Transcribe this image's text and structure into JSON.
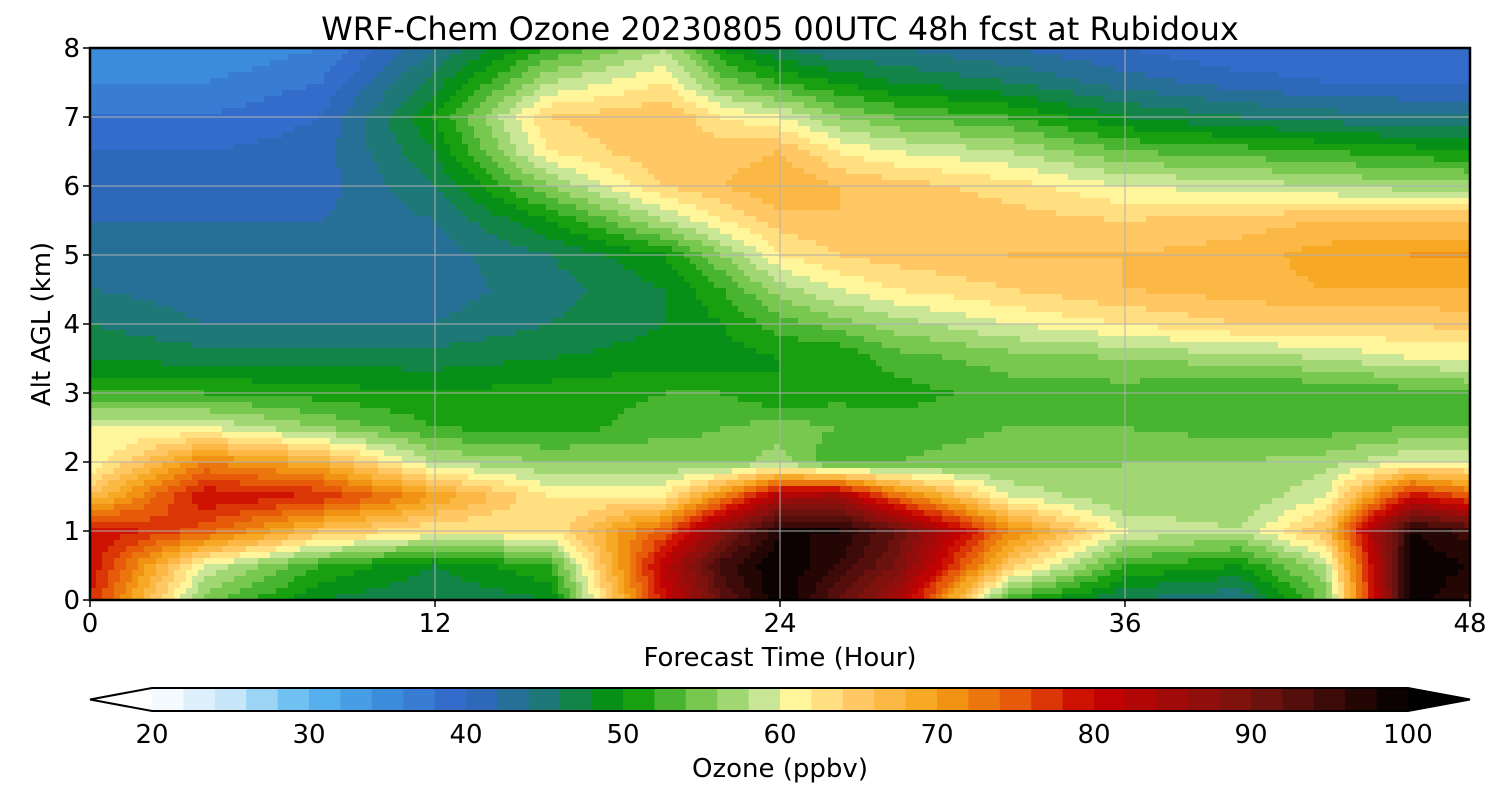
{
  "chart_data": {
    "type": "heatmap",
    "title": "WRF-Chem Ozone  20230805 00UTC 48h fcst at Rubidoux",
    "xlabel": "Forecast Time (Hour)",
    "ylabel": "Alt AGL (km)",
    "xlim": [
      0,
      48
    ],
    "ylim": [
      0,
      8
    ],
    "xticks": [
      0,
      12,
      24,
      36,
      48
    ],
    "yticks": [
      0,
      1,
      2,
      3,
      4,
      5,
      6,
      7,
      8
    ],
    "grid": true,
    "x": [
      0,
      4,
      8,
      12,
      16,
      20,
      22,
      24,
      26,
      28,
      32,
      36,
      40,
      43,
      46,
      48
    ],
    "y": [
      0,
      0.5,
      1,
      1.5,
      2,
      2.5,
      3,
      3.5,
      4,
      4.5,
      5,
      5.5,
      6,
      6.5,
      7,
      7.5,
      8
    ],
    "z": [
      [
        78,
        55,
        48,
        46,
        48,
        80,
        92,
        100,
        92,
        85,
        52,
        46,
        44,
        55,
        100,
        95
      ],
      [
        80,
        60,
        52,
        48,
        52,
        82,
        95,
        100,
        96,
        90,
        65,
        52,
        50,
        58,
        100,
        98
      ],
      [
        80,
        75,
        66,
        62,
        62,
        75,
        88,
        98,
        98,
        92,
        72,
        60,
        58,
        66,
        98,
        95
      ],
      [
        66,
        80,
        78,
        70,
        62,
        62,
        72,
        84,
        86,
        74,
        60,
        56,
        56,
        60,
        80,
        75
      ],
      [
        60,
        72,
        68,
        58,
        56,
        56,
        55,
        57,
        52,
        54,
        55,
        56,
        56,
        57,
        60,
        60
      ],
      [
        60,
        60,
        56,
        52,
        51,
        53,
        54,
        55,
        54,
        53,
        54,
        54,
        53,
        53,
        54,
        54
      ],
      [
        52,
        52,
        51,
        50,
        51,
        52,
        52,
        50,
        51,
        51,
        53,
        53,
        52,
        52,
        53,
        54
      ],
      [
        48,
        47,
        47,
        47,
        48,
        49,
        49,
        50,
        50,
        53,
        55,
        56,
        57,
        58,
        60,
        60
      ],
      [
        46,
        44,
        44,
        44,
        46,
        48,
        50,
        53,
        55,
        57,
        60,
        62,
        64,
        64,
        64,
        65
      ],
      [
        44,
        43,
        43,
        43,
        45,
        48,
        52,
        57,
        60,
        62,
        64,
        66,
        67,
        68,
        68,
        68
      ],
      [
        43,
        42,
        42,
        43,
        46,
        50,
        56,
        62,
        64,
        65,
        66,
        66,
        67,
        69,
        70,
        70
      ],
      [
        42,
        42,
        42,
        44,
        50,
        58,
        62,
        65,
        66,
        66,
        65,
        64,
        65,
        66,
        66,
        66
      ],
      [
        42,
        41,
        41,
        46,
        56,
        64,
        66,
        68,
        66,
        65,
        63,
        60,
        59,
        58,
        57,
        57
      ],
      [
        40,
        40,
        41,
        48,
        62,
        66,
        65,
        66,
        62,
        60,
        58,
        54,
        53,
        52,
        51,
        50
      ],
      [
        38,
        38,
        40,
        50,
        64,
        66,
        62,
        60,
        56,
        54,
        52,
        48,
        46,
        45,
        44,
        44
      ],
      [
        36,
        36,
        38,
        47,
        58,
        62,
        55,
        52,
        50,
        48,
        46,
        43,
        41,
        40,
        40,
        40
      ],
      [
        34,
        34,
        36,
        44,
        52,
        58,
        50,
        46,
        44,
        44,
        42,
        40,
        38,
        38,
        38,
        38
      ]
    ],
    "colorbar": {
      "label": "Ozone  (ppbv)",
      "vmin": 20,
      "vmax": 100,
      "ticks": [
        20,
        30,
        40,
        50,
        60,
        70,
        80,
        90,
        100
      ],
      "extend": "both",
      "stops": [
        {
          "v": 20,
          "c": "#ffffff"
        },
        {
          "v": 25,
          "c": "#c8e6fa"
        },
        {
          "v": 30,
          "c": "#5ab8f0"
        },
        {
          "v": 35,
          "c": "#3c8cdc"
        },
        {
          "v": 40,
          "c": "#3264c8"
        },
        {
          "v": 45,
          "c": "#1e7878"
        },
        {
          "v": 50,
          "c": "#009600"
        },
        {
          "v": 55,
          "c": "#78c850"
        },
        {
          "v": 59,
          "c": "#c8e696"
        },
        {
          "v": 61,
          "c": "#fff59a"
        },
        {
          "v": 65,
          "c": "#ffc864"
        },
        {
          "v": 70,
          "c": "#f5a014"
        },
        {
          "v": 75,
          "c": "#e65a0a"
        },
        {
          "v": 80,
          "c": "#c80000"
        },
        {
          "v": 90,
          "c": "#781410"
        },
        {
          "v": 100,
          "c": "#000000"
        }
      ]
    }
  }
}
